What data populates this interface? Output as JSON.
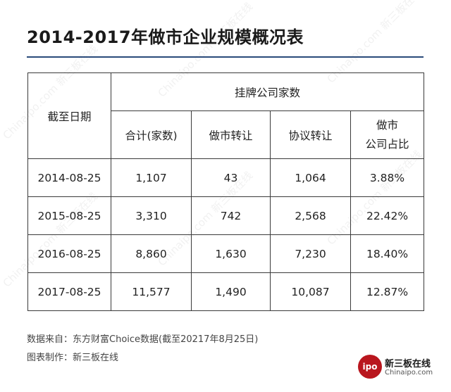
{
  "title": "2014-2017年做市企业规模概况表",
  "table": {
    "date_header": "截至日期",
    "group_header": "挂牌公司家数",
    "columns": [
      "合计(家数)",
      "做市转让",
      "协议转让",
      "做市\n公司占比"
    ],
    "rows": [
      {
        "date": "2014-08-25",
        "total": "1,107",
        "market_making": "43",
        "agreement": "1,064",
        "ratio": "3.88%"
      },
      {
        "date": "2015-08-25",
        "total": "3,310",
        "market_making": "742",
        "agreement": "2,568",
        "ratio": "22.42%"
      },
      {
        "date": "2016-08-25",
        "total": "8,860",
        "market_making": "1,630",
        "agreement": "7,230",
        "ratio": "18.40%"
      },
      {
        "date": "2017-08-25",
        "total": "11,577",
        "market_making": "1,490",
        "agreement": "10,087",
        "ratio": "12.87%"
      }
    ]
  },
  "footer": {
    "source": "数据来自：东方财富Choice数据(截至20217年8月25日)",
    "credit": "图表制作：新三板在线"
  },
  "brand": {
    "badge": "ipo",
    "name": "新三板在线",
    "domain": "Chinaipo.com"
  },
  "watermark_text": "Chinaipo.com 新三板在线",
  "colors": {
    "title_rule": "#2a4a7a",
    "brand_red": "#b9161e"
  }
}
